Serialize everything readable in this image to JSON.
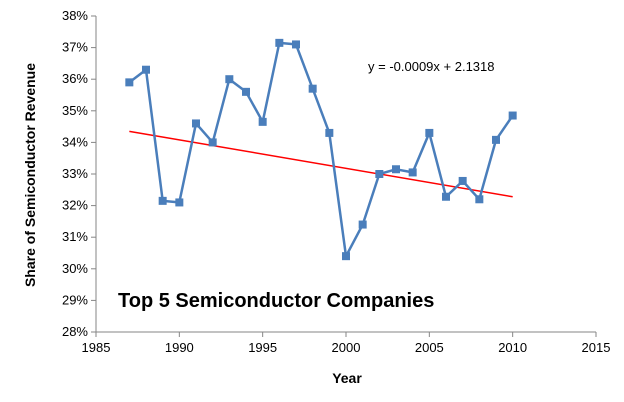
{
  "chart_data": {
    "type": "line",
    "title": "Top 5 Semiconductor Companies",
    "xlabel": "Year",
    "ylabel": "Share of Semiconductor Revenue",
    "xlim": [
      1985,
      2015
    ],
    "ylim": [
      0.28,
      0.38
    ],
    "x_ticks": [
      1985,
      1990,
      1995,
      2000,
      2005,
      2010,
      2015
    ],
    "y_ticks": [
      0.28,
      0.29,
      0.3,
      0.31,
      0.32,
      0.33,
      0.34,
      0.35,
      0.36,
      0.37,
      0.38
    ],
    "y_tick_labels": [
      "28%",
      "29%",
      "30%",
      "31%",
      "32%",
      "33%",
      "34%",
      "35%",
      "36%",
      "37%",
      "38%"
    ],
    "x_tick_labels": [
      "1985",
      "1990",
      "1995",
      "2000",
      "2005",
      "2010",
      "2015"
    ],
    "grid": false,
    "series": [
      {
        "x": [
          1987,
          1988,
          1989,
          1990,
          1991,
          1992,
          1993,
          1994,
          1995,
          1996,
          1997,
          1998,
          1999,
          2000,
          2001,
          2002,
          2003,
          2004,
          2005,
          2006,
          2007,
          2008,
          2009,
          2010
        ],
        "values": [
          0.359,
          0.363,
          0.3215,
          0.321,
          0.346,
          0.34,
          0.36,
          0.356,
          0.3465,
          0.3715,
          0.371,
          0.357,
          0.343,
          0.304,
          0.314,
          0.33,
          0.3315,
          0.3305,
          0.343,
          0.3228,
          0.3278,
          0.322,
          0.3408,
          0.3485
        ],
        "color": "#4a7ebb",
        "marker": "square"
      }
    ],
    "trendline": {
      "type": "linear",
      "equation": "y = -0.0009x + 2.1318",
      "slope": -0.0009,
      "intercept": 2.1318,
      "x_range": [
        1987,
        2010
      ],
      "color": "#ff0000"
    }
  }
}
